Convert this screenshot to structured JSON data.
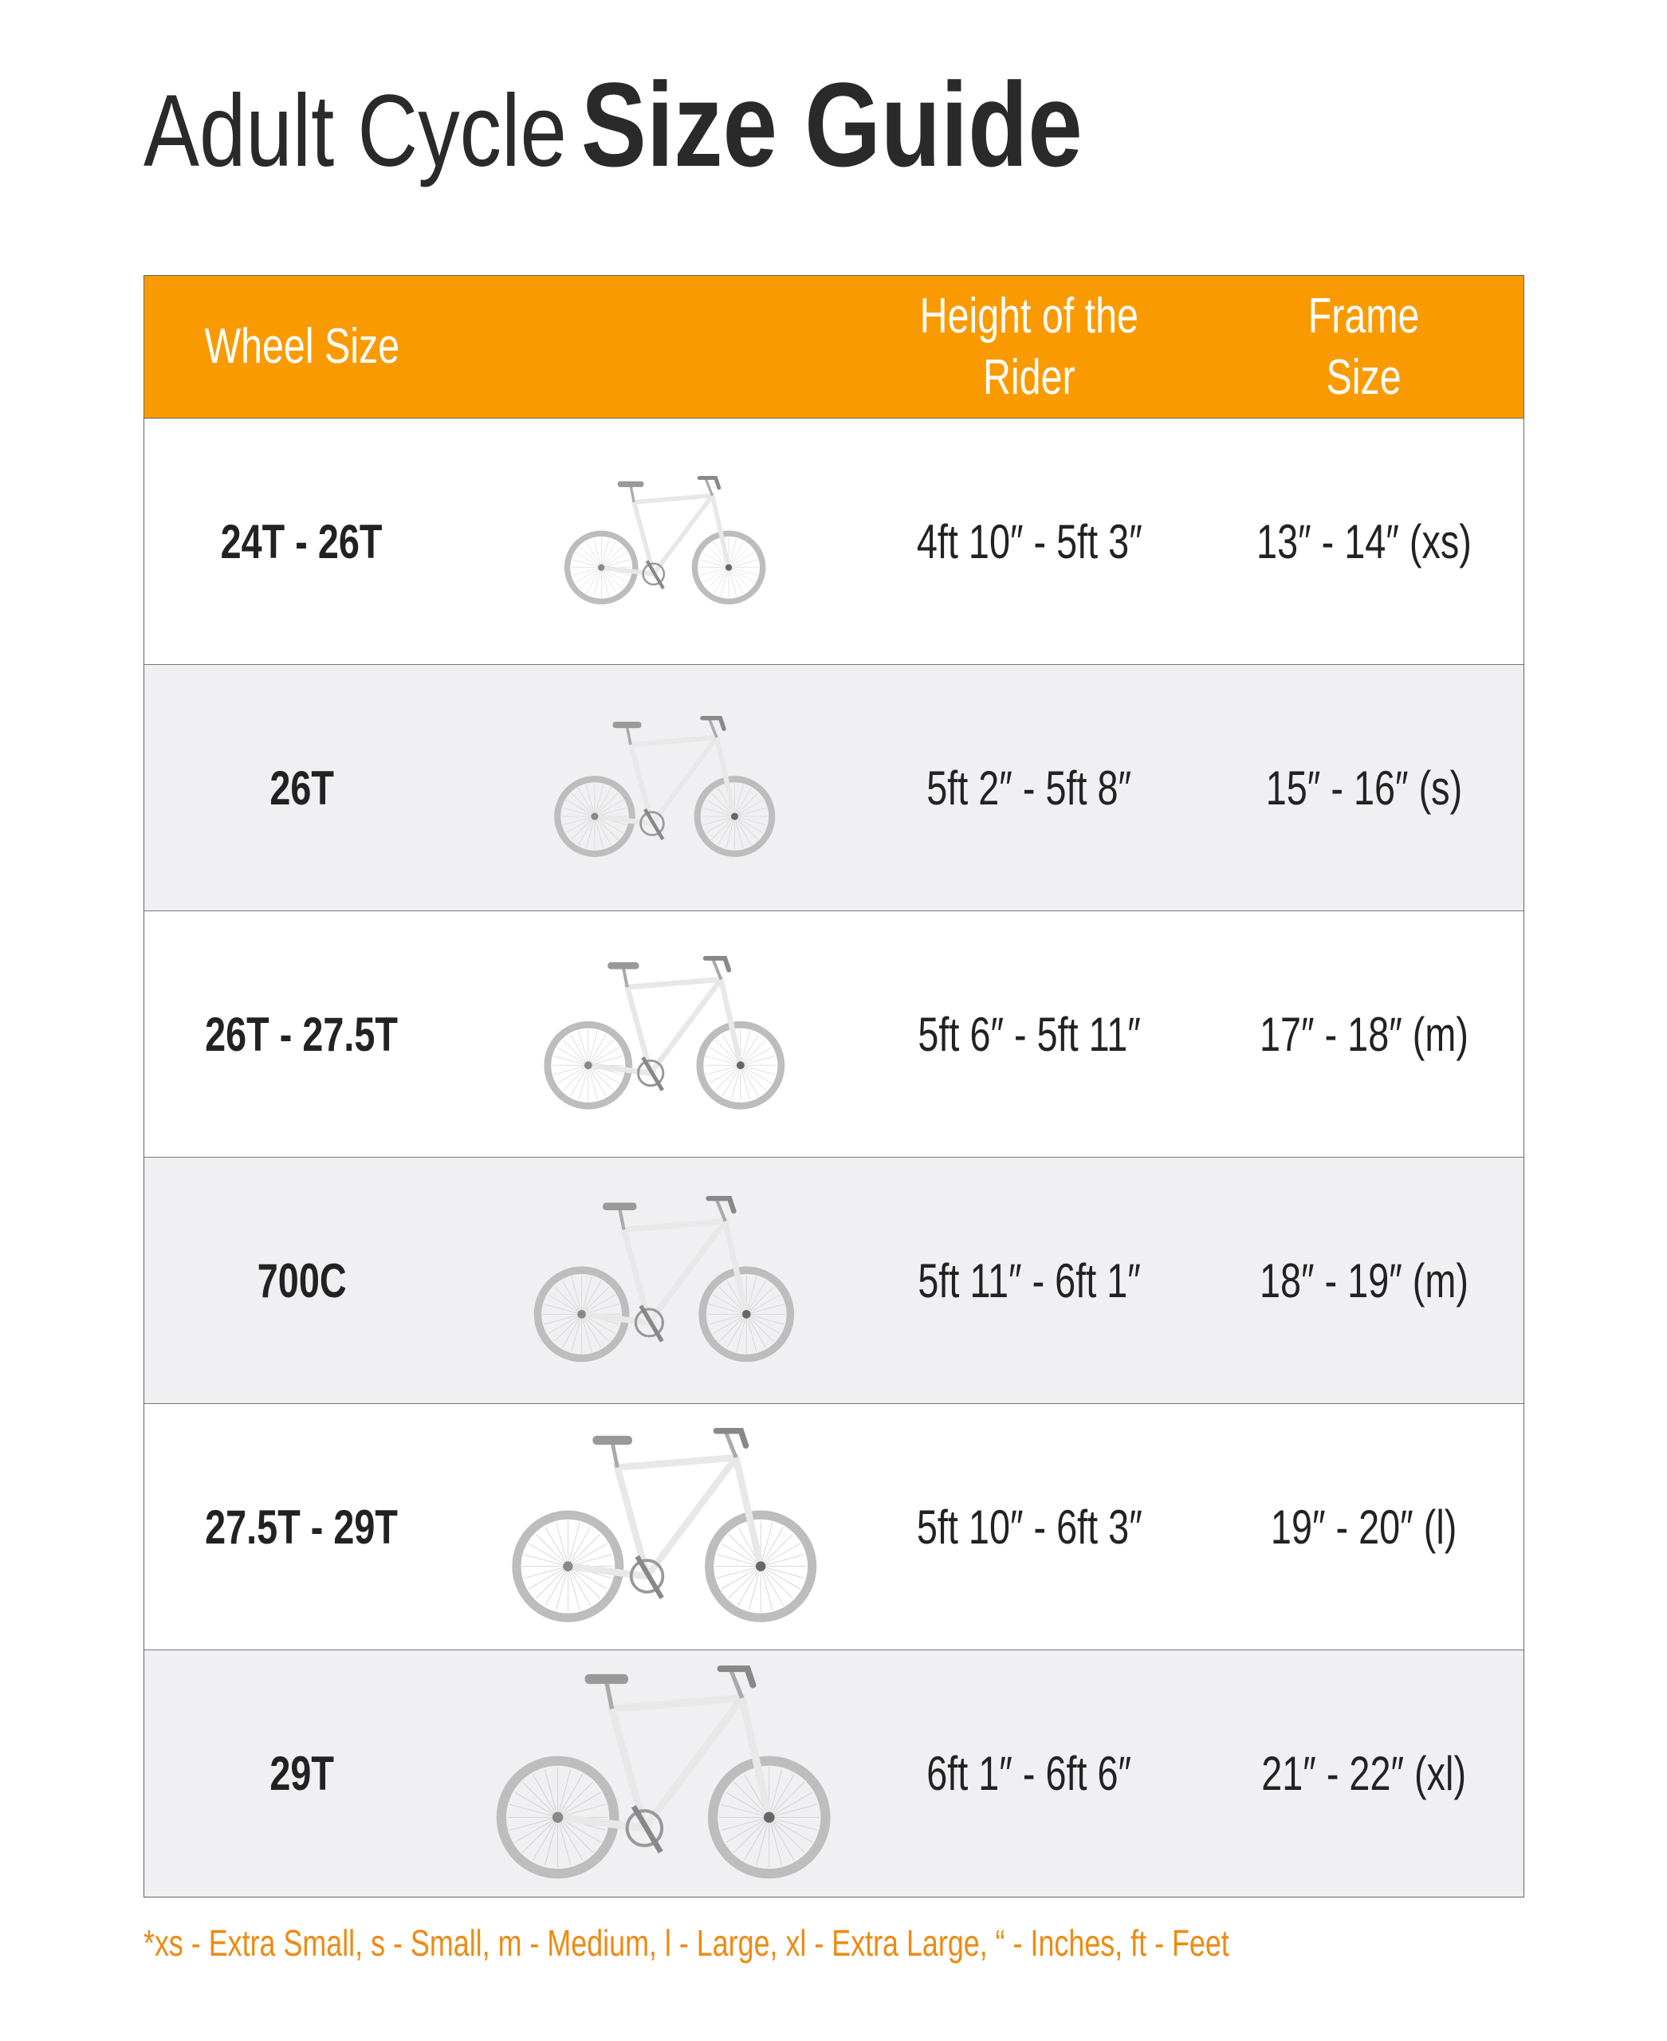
{
  "title": {
    "light": "Adult Cycle",
    "bold": "Size Guide"
  },
  "colors": {
    "header": "#F99B00",
    "alt_row": "#F0F0F2",
    "footnote": "#EE8A10"
  },
  "table": {
    "headers": {
      "wheel": "Wheel Size",
      "height_line1": "Height of the",
      "height_line2": "Rider",
      "frame_line1": "Frame",
      "frame_line2": "Size"
    },
    "rows": [
      {
        "wheel": "24T - 26T",
        "height": "4ft 10″ - 5ft 3″",
        "frame": "13″ - 14″ (xs)",
        "icon": "bicycle-icon"
      },
      {
        "wheel": "26T",
        "height": "5ft 2″ - 5ft 8″",
        "frame": "15″ - 16″ (s)",
        "icon": "bicycle-icon"
      },
      {
        "wheel": "26T - 27.5T",
        "height": "5ft 6″ - 5ft 11″",
        "frame": "17″ - 18″ (m)",
        "icon": "bicycle-icon"
      },
      {
        "wheel": "700C",
        "height": "5ft 11″ -  6ft 1″",
        "frame": "18″ - 19″ (m)",
        "icon": "bicycle-icon"
      },
      {
        "wheel": "27.5T - 29T",
        "height": "5ft 10″ -  6ft 3″",
        "frame": "19″ - 20″ (l)",
        "icon": "bicycle-icon"
      },
      {
        "wheel": "29T",
        "height": "6ft 1″ -  6ft 6″",
        "frame": "21″ - 22″ (xl)",
        "icon": "bicycle-icon"
      }
    ]
  },
  "footnote": "*xs - Extra Small, s - Small, m - Medium, l - Large, xl - Extra Large, “ - Inches, ft - Feet"
}
